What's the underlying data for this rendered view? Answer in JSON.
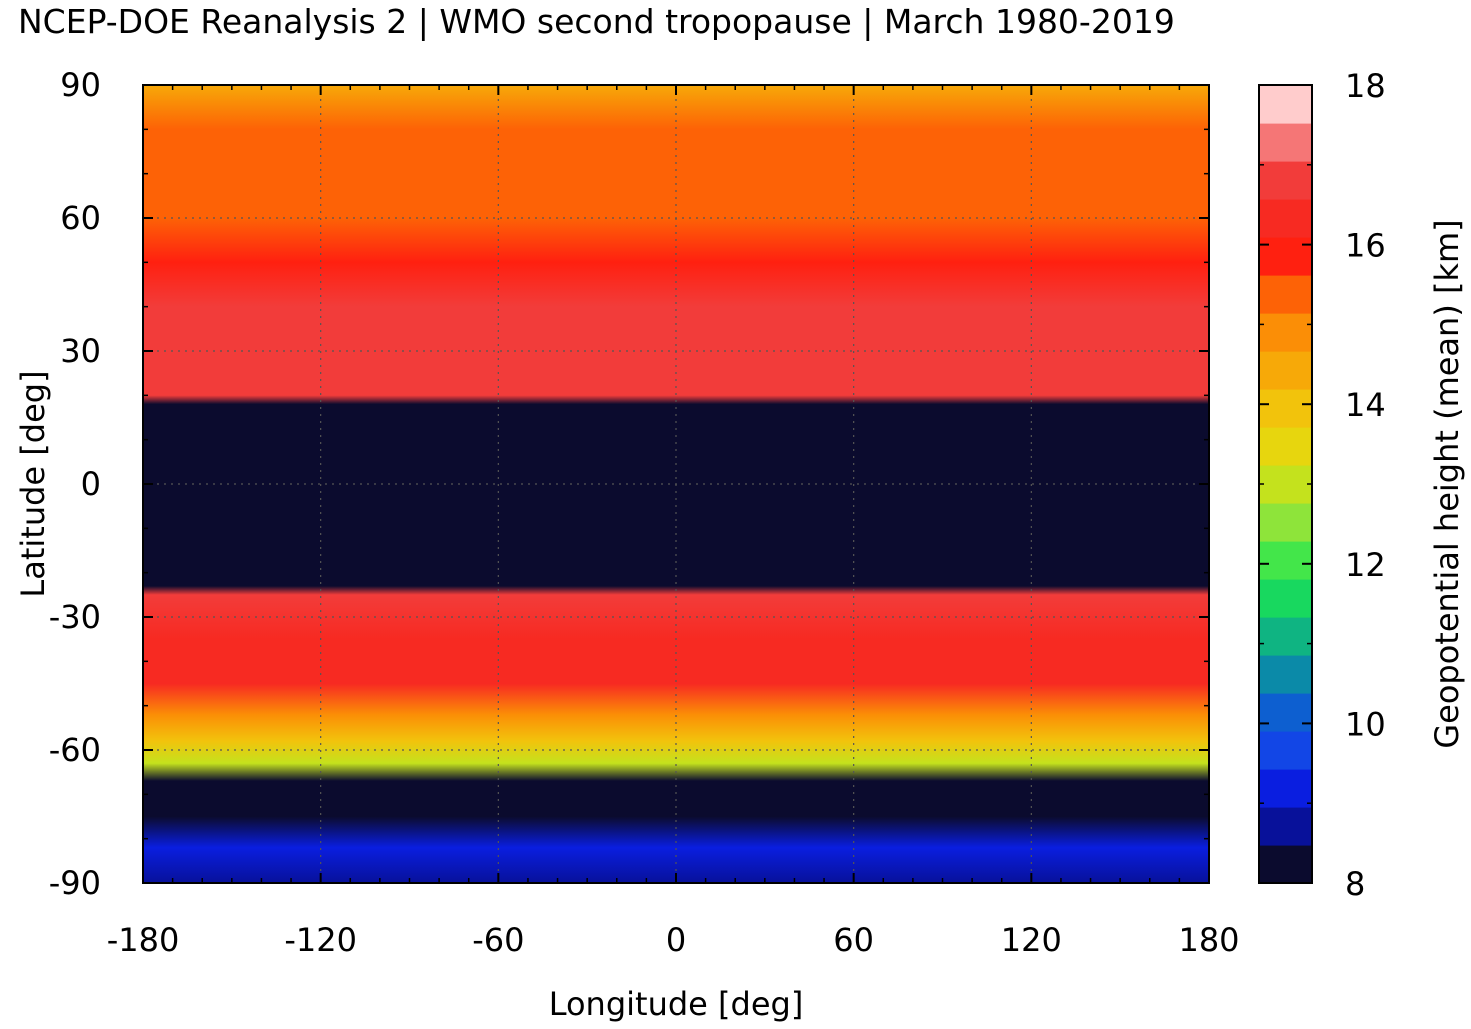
{
  "chart_data": {
    "type": "heatmap",
    "title": "NCEP-DOE Reanalysis 2 | WMO second tropopause | March 1980-2019",
    "xlabel": "Longitude [deg]",
    "ylabel": "Latitude [deg]",
    "colorbar_label": "Geopotential height (mean) [km]",
    "xlim": [
      -180,
      180
    ],
    "ylim": [
      -90,
      90
    ],
    "xticks": [
      -180,
      -120,
      -60,
      0,
      60,
      120,
      180
    ],
    "yticks": [
      90,
      60,
      30,
      0,
      -30,
      -60,
      -90
    ],
    "colorbar_range": [
      8,
      18
    ],
    "colorbar_ticks": [
      18,
      16,
      14,
      12,
      10,
      8
    ],
    "grid": true,
    "colormap": [
      "#0b0b2e",
      "#08119a",
      "#0a1ee0",
      "#1246e6",
      "#0d5fd0",
      "#0b8aa8",
      "#0fb482",
      "#18d85f",
      "#43e64a",
      "#8ee43a",
      "#c4e21d",
      "#e7d60e",
      "#f2c30c",
      "#f7a908",
      "#fb8e06",
      "#fd6206",
      "#ff2010",
      "#f72a22",
      "#f23c3a",
      "#f57676",
      "#ffcccc"
    ],
    "zonal_profile": [
      {
        "lat": 90,
        "value": 14.6
      },
      {
        "lat": 80,
        "value": 15.2
      },
      {
        "lat": 70,
        "value": 15.6
      },
      {
        "lat": 60,
        "value": 15.2
      },
      {
        "lat": 50,
        "value": 15.9
      },
      {
        "lat": 40,
        "value": 16.6
      },
      {
        "lat": 30,
        "value": 16.9
      },
      {
        "lat": 20,
        "value": 17.0
      },
      {
        "lat": 18,
        "value": 8.2
      },
      {
        "lat": 0,
        "value": 8.2
      },
      {
        "lat": -23,
        "value": 8.2
      },
      {
        "lat": -25,
        "value": 16.8
      },
      {
        "lat": -35,
        "value": 16.5
      },
      {
        "lat": -45,
        "value": 16.1
      },
      {
        "lat": -52,
        "value": 15.0
      },
      {
        "lat": -58,
        "value": 14.0
      },
      {
        "lat": -63,
        "value": 12.8
      },
      {
        "lat": -67,
        "value": 8.2
      },
      {
        "lat": -75,
        "value": 8.2
      },
      {
        "lat": -82,
        "value": 9.2
      },
      {
        "lat": -90,
        "value": 8.8
      }
    ]
  }
}
